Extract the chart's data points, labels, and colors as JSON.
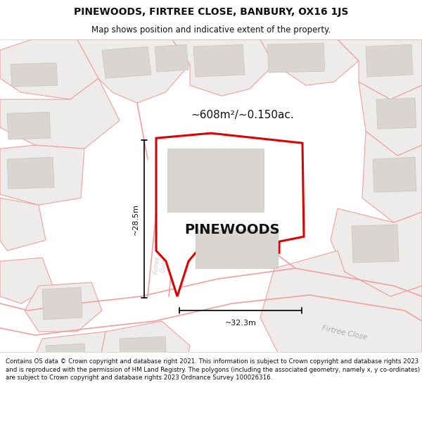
{
  "title_line1": "PINEWOODS, FIRTREE CLOSE, BANBURY, OX16 1JS",
  "title_line2": "Map shows position and indicative extent of the property.",
  "property_label": "PINEWOODS",
  "area_label": "~608m²/~0.150ac.",
  "dim_height": "~28.5m",
  "dim_width": "~32.3m",
  "street_label_br": "Firtree Close",
  "street_label_v": "Firtree\nClose",
  "disclaimer": "Contains OS data © Crown copyright and database right 2021. This information is subject to Crown copyright and database rights 2023 and is reproduced with the permission of HM Land Registry. The polygons (including the associated geometry, namely x, y co-ordinates) are subject to Crown copyright and database rights 2023 Ordnance Survey 100026316.",
  "map_bg": "#f7f6f4",
  "property_fill": "#ffffff",
  "property_edge": "#e00000",
  "plot_edge": "#f0a0a0",
  "plot_fill": "#eeeceb",
  "plot_fill2": "#f2f0ef",
  "building_fill": "#d9d6d2",
  "building_edge": "#c8c5c0",
  "text_color": "#111111",
  "page_bg": "#ffffff",
  "dim_color": "#111111",
  "street_color": "#aaaaaa",
  "title_fontsize": 10,
  "subtitle_fontsize": 8.5,
  "label_fontsize": 14,
  "area_fontsize": 11,
  "dim_fontsize": 8,
  "street_fontsize": 7.5,
  "disc_fontsize": 6.2
}
